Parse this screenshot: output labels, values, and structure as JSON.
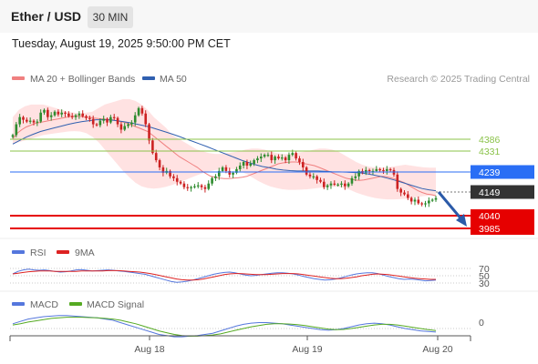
{
  "header": {
    "pair": "Ether / USD",
    "timeframe": "30 MIN",
    "datetime": "Tuesday, August 19, 2025 9:50:00 PM CET"
  },
  "legend": {
    "ma20": "MA 20 + Bollinger Bands",
    "ma50": "MA 50",
    "credit": "Research © 2025 Trading Central"
  },
  "colors": {
    "candle_up": "#2e8b2e",
    "candle_down": "#cc2222",
    "ma20": "#f08080",
    "ma50": "#3060b0",
    "bollinger": "#ffd6d6",
    "resistance": "#8bc34a",
    "pivot": "#2a6ef5",
    "support": "#e60000",
    "current": "#333333",
    "rsi": "#5577dd",
    "rsi_ma": "#dd2222",
    "macd": "#5577dd",
    "macd_signal": "#55aa22"
  },
  "chart_data": [
    {
      "type": "candlestick",
      "title": "Ether / USD",
      "timeframe": "30 MIN",
      "x_ticks": [
        "Aug 18",
        "Aug 19",
        "Aug 20"
      ],
      "ylim": [
        3960,
        4720
      ],
      "levels": {
        "resistance": [
          4386,
          4331
        ],
        "pivot": 4239,
        "current": 4149,
        "support": [
          4040,
          3985
        ]
      },
      "level_labels": [
        "4386",
        "4331",
        "4239",
        "4149",
        "4040",
        "3985"
      ],
      "forecast_arrow": {
        "from": 4140,
        "to": 4020,
        "direction": "down"
      },
      "closes": [
        4500,
        4560,
        4600,
        4585,
        4575,
        4580,
        4570,
        4575,
        4625,
        4640,
        4600,
        4610,
        4630,
        4615,
        4625,
        4620,
        4605,
        4600,
        4610,
        4620,
        4605,
        4595,
        4590,
        4560,
        4555,
        4580,
        4590,
        4570,
        4600,
        4595,
        4560,
        4530,
        4550,
        4560,
        4570,
        4610,
        4650,
        4620,
        4560,
        4470,
        4400,
        4360,
        4320,
        4290,
        4300,
        4270,
        4260,
        4240,
        4230,
        4210,
        4205,
        4210,
        4215,
        4220,
        4210,
        4200,
        4230,
        4260,
        4270,
        4300,
        4320,
        4300,
        4280,
        4290,
        4310,
        4330,
        4350,
        4330,
        4340,
        4360,
        4370,
        4380,
        4390,
        4390,
        4360,
        4380,
        4370,
        4375,
        4360,
        4390,
        4400,
        4370,
        4350,
        4320,
        4280,
        4270,
        4270,
        4250,
        4240,
        4210,
        4220,
        4230,
        4225,
        4225,
        4230,
        4215,
        4230,
        4260,
        4270,
        4300,
        4290,
        4305,
        4300,
        4300,
        4310,
        4305,
        4300,
        4310,
        4305,
        4280,
        4200,
        4180,
        4170,
        4150,
        4130,
        4140,
        4120,
        4115,
        4120,
        4135,
        4140,
        4149
      ],
      "ma20": [
        4480,
        4510,
        4530,
        4545,
        4555,
        4565,
        4570,
        4575,
        4580,
        4585,
        4590,
        4595,
        4600,
        4605,
        4605,
        4605,
        4600,
        4600,
        4595,
        4592,
        4590,
        4588,
        4585,
        4580,
        4575,
        4570,
        4560,
        4550,
        4540,
        4530,
        4520,
        4500,
        4480,
        4460,
        4440,
        4420,
        4400,
        4380,
        4365,
        4350,
        4335,
        4320,
        4300,
        4285,
        4270,
        4265,
        4260,
        4258,
        4258,
        4260,
        4262,
        4265,
        4270,
        4280,
        4290,
        4300,
        4310,
        4320,
        4330,
        4340,
        4345,
        4348,
        4350,
        4350,
        4345,
        4340,
        4335,
        4330,
        4320,
        4310,
        4300,
        4290,
        4280,
        4270,
        4260,
        4255,
        4250,
        4248,
        4250,
        4255,
        4260,
        4265,
        4270,
        4268,
        4262,
        4255,
        4245,
        4235,
        4220,
        4205,
        4190,
        4180,
        4172,
        4168,
        4162
      ],
      "ma50": [
        4450,
        4470,
        4490,
        4505,
        4520,
        4530,
        4540,
        4550,
        4560,
        4568,
        4575,
        4580,
        4585,
        4585,
        4584,
        4580,
        4574,
        4568,
        4560,
        4552,
        4542,
        4530,
        4518,
        4505,
        4492,
        4478,
        4464,
        4450,
        4436,
        4420,
        4405,
        4390,
        4375,
        4360,
        4347,
        4335,
        4325,
        4318,
        4310,
        4305,
        4302,
        4300,
        4300,
        4300,
        4300,
        4298,
        4296,
        4295,
        4294,
        4292,
        4290,
        4285,
        4278,
        4270,
        4260,
        4250,
        4238,
        4226,
        4214,
        4202,
        4195,
        4190
      ],
      "bb_upper": [
        4600,
        4640,
        4660,
        4670,
        4670,
        4670,
        4660,
        4650,
        4640,
        4630,
        4625,
        4620,
        4625,
        4630,
        4650,
        4670,
        4680,
        4690,
        4700,
        4700,
        4690,
        4670,
        4640,
        4600,
        4570,
        4540,
        4500,
        4480,
        4460,
        4440,
        4420,
        4410,
        4400,
        4395,
        4395,
        4400,
        4405,
        4410,
        4420,
        4425,
        4425,
        4420,
        4410,
        4400,
        4395,
        4395,
        4400,
        4405,
        4410,
        4418,
        4425,
        4425,
        4420,
        4410,
        4390,
        4370,
        4350,
        4335,
        4325,
        4320,
        4318,
        4320,
        4325,
        4330,
        4335,
        4330,
        4325,
        4320,
        4318,
        4318
      ],
      "bb_lower": [
        4450,
        4460,
        4470,
        4480,
        4490,
        4500,
        4505,
        4510,
        4515,
        4520,
        4522,
        4520,
        4510,
        4490,
        4460,
        4420,
        4380,
        4340,
        4300,
        4265,
        4235,
        4215,
        4205,
        4202,
        4205,
        4212,
        4222,
        4235,
        4248,
        4262,
        4275,
        4288,
        4298,
        4305,
        4310,
        4312,
        4310,
        4300,
        4285,
        4265,
        4245,
        4228,
        4214,
        4205,
        4198,
        4195,
        4195,
        4196,
        4198,
        4202,
        4206,
        4210,
        4212,
        4212,
        4205,
        4195,
        4180,
        4168,
        4158,
        4150,
        4145,
        4142,
        4142,
        4143,
        4145,
        4150,
        4155,
        4160,
        4162,
        4160
      ]
    },
    {
      "type": "line",
      "title": "RSI",
      "ylim": [
        20,
        80
      ],
      "y_ticks": [
        "70",
        "50",
        "30"
      ],
      "series": [
        {
          "name": "RSI",
          "values": [
            55,
            62,
            66,
            68,
            66,
            65,
            66,
            64,
            62,
            60,
            61,
            63,
            66,
            67,
            65,
            63,
            64,
            65,
            66,
            65,
            63,
            62,
            60,
            58,
            56,
            54,
            50,
            46,
            42,
            38,
            34,
            32,
            33,
            35,
            38,
            42,
            46,
            50,
            54,
            57,
            59,
            60,
            58,
            55,
            52,
            50,
            51,
            53,
            55,
            57,
            58,
            58,
            57,
            55,
            52,
            48,
            45,
            42,
            40,
            38,
            39,
            41,
            44,
            48,
            52,
            55,
            57,
            58,
            58,
            56,
            52,
            48,
            45,
            42,
            40,
            41,
            40,
            38,
            36,
            37,
            38
          ]
        },
        {
          "name": "9MA",
          "values": [
            55,
            57,
            59,
            61,
            62,
            63,
            63,
            63,
            62,
            62,
            62,
            62,
            62,
            63,
            63,
            63,
            63,
            63,
            64,
            64,
            64,
            63,
            62,
            61,
            60,
            58,
            56,
            53,
            50,
            47,
            44,
            41,
            39,
            38,
            38,
            39,
            41,
            44,
            47,
            50,
            53,
            55,
            56,
            56,
            55,
            54,
            53,
            53,
            53,
            54,
            55,
            56,
            56,
            56,
            55,
            53,
            51,
            49,
            47,
            45,
            43,
            42,
            42,
            43,
            45,
            47,
            50,
            52,
            54,
            55,
            54,
            53,
            51,
            49,
            47,
            45,
            43,
            42,
            41,
            40,
            40
          ]
        }
      ]
    },
    {
      "type": "line",
      "title": "MACD",
      "y_ticks": [
        "0"
      ],
      "series": [
        {
          "name": "MACD",
          "values": [
            4,
            6,
            8,
            9,
            10,
            10.5,
            11,
            11,
            10.5,
            10,
            9.5,
            9,
            8,
            7,
            5,
            3,
            1,
            -1,
            -3,
            -5,
            -6,
            -7,
            -7,
            -6.5,
            -6,
            -5,
            -4,
            -2,
            0,
            2,
            3.5,
            4.5,
            5,
            5,
            4.5,
            4,
            3,
            2,
            1,
            0,
            -1,
            -1.5,
            -1,
            0,
            1.5,
            3,
            4,
            4.5,
            4,
            3,
            1.5,
            0,
            -1,
            -2,
            -2.5,
            -3
          ]
        },
        {
          "name": "MACD Signal",
          "values": [
            3,
            4,
            5.5,
            6.5,
            7.5,
            8.5,
            9,
            9.5,
            9.5,
            9.5,
            9.2,
            9,
            8.5,
            8,
            7,
            5.5,
            4,
            2,
            0,
            -2,
            -3.5,
            -5,
            -6,
            -6.5,
            -6.5,
            -6,
            -5.5,
            -4.5,
            -3,
            -1.5,
            0,
            1.5,
            2.5,
            3.5,
            4,
            4,
            3.8,
            3.2,
            2.5,
            1.5,
            0.5,
            -0.5,
            -1,
            -0.8,
            0,
            1,
            2,
            3,
            3.5,
            3.5,
            3,
            2,
            1,
            0,
            -1,
            -1.8
          ]
        }
      ]
    }
  ]
}
